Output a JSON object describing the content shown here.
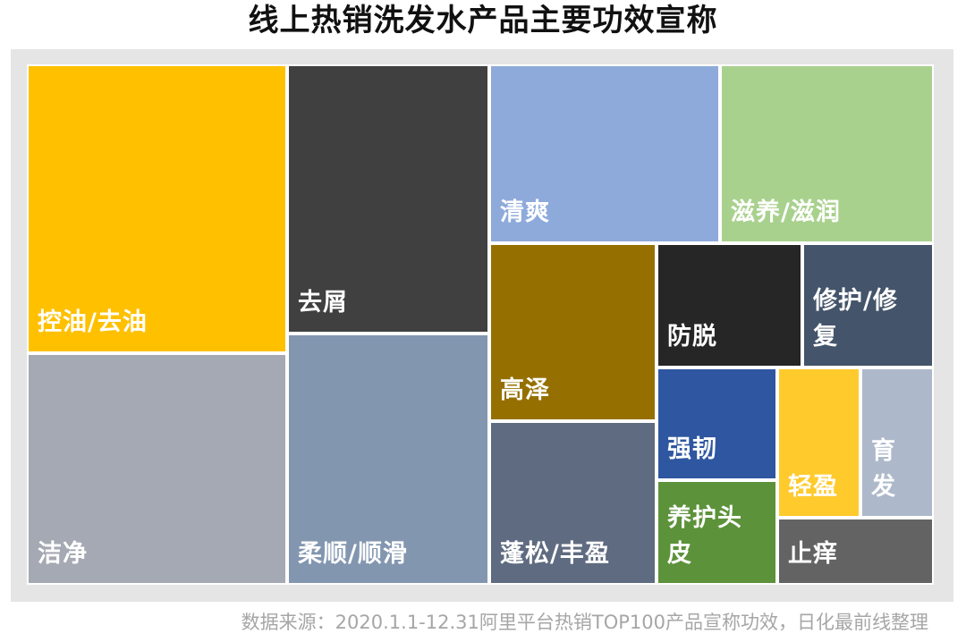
{
  "title": "线上热销洗发水产品主要功效宣称",
  "source": "数据来源：2020.1.1-12.31阿里平台热销TOP100产品宣称功效，日化最前线整理",
  "chart_data": {
    "type": "treemap",
    "title": "线上热销洗发水产品主要功效宣称",
    "cells": [
      {
        "label": "控油/去油",
        "color": "#ffc000"
      },
      {
        "label": "洁净",
        "color": "#a5a9b3"
      },
      {
        "label": "去屑",
        "color": "#404040"
      },
      {
        "label": "柔顺/顺滑",
        "color": "#8396b0"
      },
      {
        "label": "清爽",
        "color": "#8eaadb"
      },
      {
        "label": "滋养/滋润",
        "color": "#a9d18e"
      },
      {
        "label": "高泽",
        "color": "#957000"
      },
      {
        "label": "蓬松/丰盈",
        "color": "#5f6b80"
      },
      {
        "label": "防脱",
        "color": "#262626"
      },
      {
        "label": "修护/修\n复",
        "color": "#44546a"
      },
      {
        "label": "强韧",
        "color": "#2f56a0"
      },
      {
        "label": "养护头\n皮",
        "color": "#5c923a"
      },
      {
        "label": "轻盈",
        "color": "#ffca2c"
      },
      {
        "label": "育\n发",
        "color": "#adb9ca"
      },
      {
        "label": "止痒",
        "color": "#636363"
      }
    ]
  }
}
